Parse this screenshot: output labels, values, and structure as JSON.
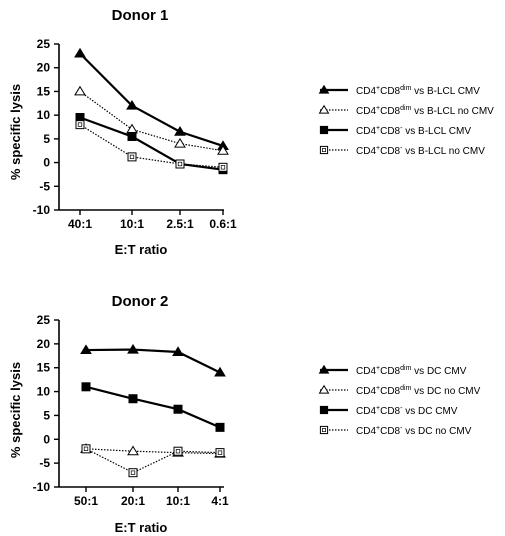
{
  "chart_data": [
    {
      "type": "line",
      "title": "Donor 1",
      "xlabel": "E:T ratio",
      "ylabel": "% specific lysis",
      "categories": [
        "40:1",
        "10:1",
        "2.5:1",
        "0.6:1"
      ],
      "ylim": [
        -10,
        25
      ],
      "yticks": [
        25,
        20,
        15,
        10,
        5,
        0,
        -5,
        -10
      ],
      "legend_position": "right",
      "series": [
        {
          "name": "CD4+CD8dim vs B-LCL CMV",
          "name_parts": [
            "CD4",
            "+",
            "CD8",
            "dim",
            " vs B-LCL CMV"
          ],
          "values": [
            23,
            12,
            6.5,
            3.5
          ],
          "marker": "triangle",
          "fill": "filled",
          "line": "solid",
          "width": 2.2
        },
        {
          "name": "CD4+CD8dim vs B-LCL no CMV",
          "name_parts": [
            "CD4",
            "+",
            "CD8",
            "dim",
            " vs B-LCL no CMV"
          ],
          "values": [
            15,
            7,
            4,
            2.5
          ],
          "marker": "triangle",
          "fill": "open",
          "line": "dotted",
          "width": 1.2
        },
        {
          "name": "CD4+CD8- vs B-LCL CMV",
          "name_parts": [
            "CD4",
            "+",
            "CD8",
            "-",
            " vs B-LCL CMV"
          ],
          "values": [
            9.5,
            5.5,
            -0.3,
            -1.5
          ],
          "marker": "square",
          "fill": "filled",
          "line": "solid",
          "width": 2.2
        },
        {
          "name": "CD4+CD8- vs B-LCL no CMV",
          "name_parts": [
            "CD4",
            "+",
            "CD8",
            "-",
            " vs B-LCL no CMV"
          ],
          "values": [
            8,
            1.2,
            -0.3,
            -1
          ],
          "marker": "square",
          "fill": "open",
          "line": "dotted",
          "width": 1.2
        }
      ]
    },
    {
      "type": "line",
      "title": "Donor 2",
      "xlabel": "E:T ratio",
      "ylabel": "% specific lysis",
      "categories": [
        "50:1",
        "20:1",
        "10:1",
        "4:1"
      ],
      "ylim": [
        -10,
        25
      ],
      "yticks": [
        25,
        20,
        15,
        10,
        5,
        0,
        -5,
        -10
      ],
      "legend_position": "right",
      "series": [
        {
          "name": "CD4+CD8dim vs DC CMV",
          "name_parts": [
            "CD4",
            "+",
            "CD8",
            "dim",
            " vs DC CMV"
          ],
          "values": [
            18.7,
            18.8,
            18.3,
            14
          ],
          "marker": "triangle",
          "fill": "filled",
          "line": "solid",
          "width": 2.2
        },
        {
          "name": "CD4+CD8dim vs DC no CMV",
          "name_parts": [
            "CD4",
            "+",
            "CD8",
            "dim",
            " vs DC no CMV"
          ],
          "values": [
            -2,
            -2.5,
            -2.8,
            -3
          ],
          "marker": "triangle",
          "fill": "open",
          "line": "dotted",
          "width": 1.2
        },
        {
          "name": "CD4+CD8- vs DC CMV",
          "name_parts": [
            "CD4",
            "+",
            "CD8",
            "-",
            " vs DC CMV"
          ],
          "values": [
            11,
            8.5,
            6.3,
            2.5
          ],
          "marker": "square",
          "fill": "filled",
          "line": "solid",
          "width": 2.2
        },
        {
          "name": "CD4+CD8- vs DC no CMV",
          "name_parts": [
            "CD4",
            "+",
            "CD8",
            "-",
            " vs DC no CMV"
          ],
          "values": [
            -2,
            -7,
            -2.5,
            -2.8
          ],
          "marker": "square",
          "fill": "open",
          "line": "dotted",
          "width": 1.2
        }
      ]
    }
  ]
}
